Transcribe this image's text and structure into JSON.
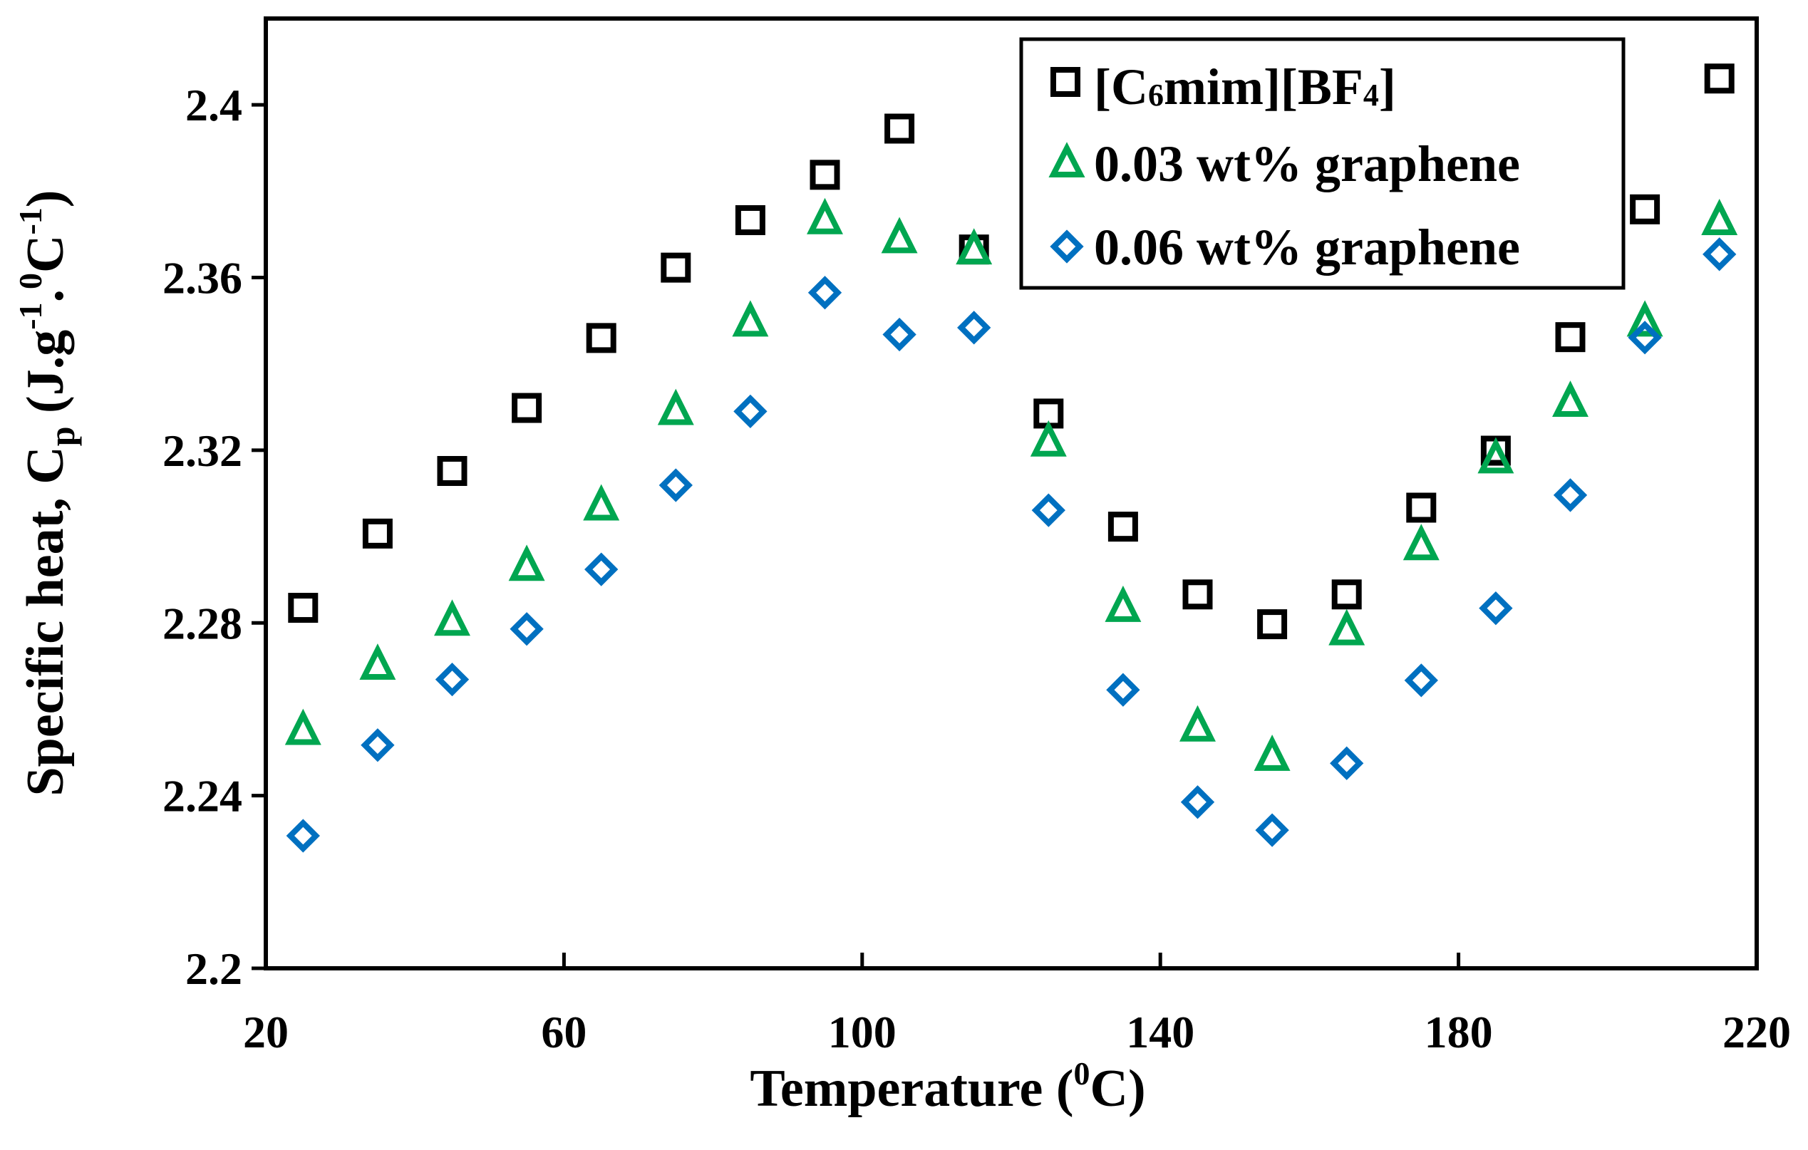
{
  "colors": {
    "square": "#000000",
    "triangle": "#00A650",
    "diamond": "#0070C0",
    "axis": "#000000",
    "background": "#ffffff"
  },
  "chart_data": {
    "type": "scatter",
    "title": "",
    "xlabel": {
      "main": "Temperature (",
      "sup": "0",
      "tail": "C)"
    },
    "ylabel": {
      "a": "Specific heat, C",
      "sub": "p",
      "b": " (J.g",
      "sup1": "-1",
      "c": ".",
      "sup2": "0",
      "d": "C",
      "sup3": "-1",
      "e": ")"
    },
    "xlim": [
      20,
      220
    ],
    "ylim": [
      2.2,
      2.42
    ],
    "xticks": [
      20,
      60,
      100,
      140,
      180,
      220
    ],
    "xtick_labels": [
      "20",
      "60",
      "100",
      "140",
      "180",
      "220"
    ],
    "yticks": [
      2.2,
      2.24,
      2.28,
      2.32,
      2.36,
      2.4
    ],
    "ytick_labels": [
      "2.2",
      "2.24",
      "2.28",
      "2.32",
      "2.36",
      "2.4"
    ],
    "legend_position": "top-right",
    "legend": [
      {
        "marker": "square",
        "name": "[C",
        "sub": "6",
        "name2": "mim][BF",
        "sub2": "4",
        "name3": "]"
      },
      {
        "marker": "triangle",
        "name": "0.03 wt% graphene",
        "sub": "",
        "name2": "",
        "sub2": "",
        "name3": ""
      },
      {
        "marker": "diamond",
        "name": "0.06 wt% graphene",
        "sub": "",
        "name2": "",
        "sub2": "",
        "name3": ""
      }
    ],
    "series": [
      {
        "name": "[C6mim][BF4]",
        "marker": "square",
        "x": [
          25,
          35,
          45,
          55,
          65,
          75,
          85,
          95,
          105,
          115,
          125,
          135,
          145,
          155,
          165,
          175,
          185,
          195,
          205,
          215
        ],
        "y": [
          2.2835,
          2.3007,
          2.3152,
          2.3298,
          2.346,
          2.3623,
          2.3733,
          2.3838,
          2.3945,
          2.3665,
          2.3285,
          2.3023,
          2.2866,
          2.2797,
          2.2866,
          2.3067,
          2.3199,
          2.3462,
          2.3758,
          2.4061
        ]
      },
      {
        "name": "0.03 wt% graphene",
        "marker": "triangle",
        "x": [
          25,
          35,
          45,
          55,
          65,
          75,
          85,
          95,
          105,
          115,
          125,
          135,
          145,
          155,
          165,
          175,
          185,
          195,
          205,
          215
        ],
        "y": [
          2.2552,
          2.2703,
          2.2805,
          2.2932,
          2.3072,
          2.3293,
          2.3498,
          2.3735,
          2.3691,
          2.3665,
          2.322,
          2.2837,
          2.256,
          2.2492,
          2.2783,
          2.298,
          2.3181,
          2.3312,
          2.3498,
          2.3733
        ]
      },
      {
        "name": "0.06 wt% graphene",
        "marker": "diamond",
        "x": [
          25,
          35,
          45,
          55,
          65,
          75,
          85,
          95,
          105,
          115,
          125,
          135,
          145,
          155,
          165,
          175,
          185,
          195,
          205,
          215
        ],
        "y": [
          2.2307,
          2.2517,
          2.2669,
          2.2786,
          2.2924,
          2.3119,
          2.329,
          2.3565,
          2.3468,
          2.3484,
          2.3061,
          2.2645,
          2.2385,
          2.232,
          2.2475,
          2.2667,
          2.2834,
          2.3096,
          2.3461,
          2.3654
        ]
      }
    ]
  }
}
